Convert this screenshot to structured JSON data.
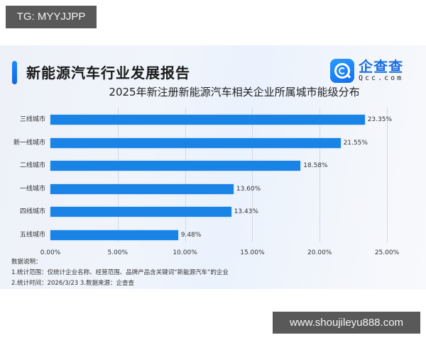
{
  "watermark_top": "TG: MYYJJPP",
  "watermark_bottom": "www.shoujileyu888.com",
  "header": {
    "title": "新能源汽车行业发展报告",
    "logo_cn": "企查查",
    "logo_en": "Qcc.com",
    "accent_color": "#1a84e6"
  },
  "chart_data": {
    "type": "bar",
    "orientation": "horizontal",
    "title": "2025年新注册新能源汽车相关企业所属城市能级分布",
    "categories": [
      "三线城市",
      "新一线城市",
      "二线城市",
      "一线城市",
      "四线城市",
      "五线城市"
    ],
    "values": [
      23.35,
      21.55,
      18.58,
      13.6,
      13.43,
      9.48
    ],
    "value_labels": [
      "23.35%",
      "21.55%",
      "18.58%",
      "13.60%",
      "13.43%",
      "9.48%"
    ],
    "xlabel": "",
    "ylabel": "",
    "xlim": [
      0,
      25
    ],
    "x_ticks": [
      "0.00%",
      "5.00%",
      "10.00%",
      "15.00%",
      "20.00%",
      "25.00%"
    ],
    "grid": true,
    "bar_color": "#1a84e6"
  },
  "notes": {
    "heading": "数据说明：",
    "line1": "1.统计范围：仅统计企业名称、经营范围、品牌产品含关键词“新能源汽车”的企业",
    "line2": "2.统计时间：2026/3/23  3.数据来源：企查查"
  }
}
